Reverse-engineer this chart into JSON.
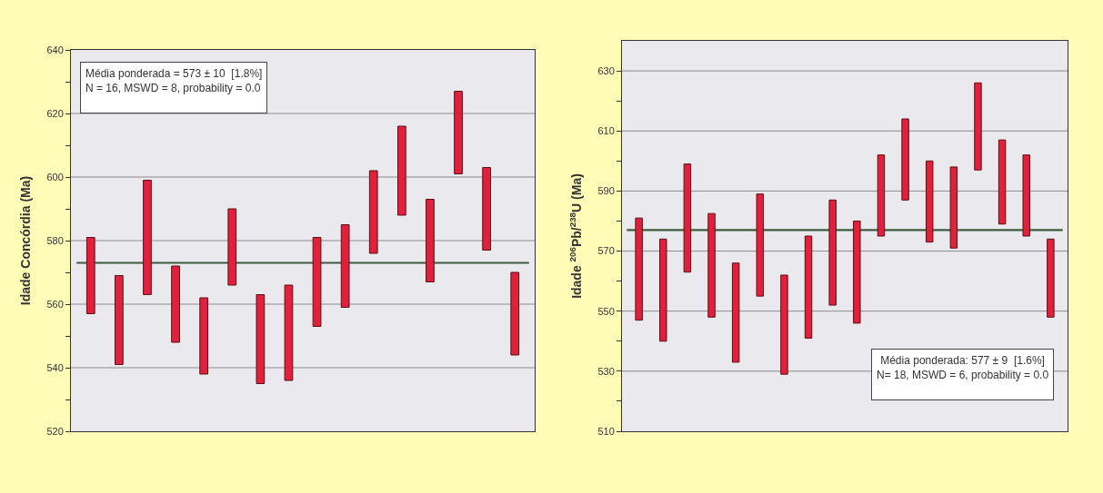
{
  "chart_data": [
    {
      "type": "bar",
      "ylabel": "Idade Concórdia (Ma)",
      "categories": [
        null,
        null,
        null,
        null,
        null,
        null,
        null,
        null,
        null,
        null,
        null,
        null,
        null,
        null,
        null,
        null
      ],
      "base": [
        557,
        541,
        563,
        548,
        538,
        566,
        535,
        536,
        553,
        559,
        576,
        588,
        567,
        601,
        577,
        544
      ],
      "values": [
        24,
        28,
        36,
        24,
        24,
        24,
        28,
        30,
        28,
        26,
        26,
        28,
        26,
        26,
        26,
        26
      ],
      "color": "#e0203c",
      "ylim": [
        520,
        640
      ],
      "yticks": [
        520,
        {
          "value": 530,
          "label": null
        },
        540,
        {
          "value": 550,
          "label": null
        },
        560,
        {
          "value": 570,
          "label": null
        },
        580,
        {
          "value": 590,
          "label": null
        },
        600,
        {
          "value": 610,
          "label": null
        },
        620,
        {
          "value": 630,
          "label": null
        },
        640
      ],
      "grid": "y",
      "ref_lines": [
        {
          "axis": "y",
          "value": 573,
          "color": "#3d5c3d"
        }
      ],
      "annotations": [
        "Média ponderada = 573 ± 10  [1.8%]",
        "N = 16, MSWD = 8, probability = 0.0"
      ]
    },
    {
      "type": "bar",
      "ylabel": "Idade $^{206}$Pb/$^{238}$U (Ma)",
      "categories": [
        null,
        null,
        null,
        null,
        null,
        null,
        null,
        null,
        null,
        null,
        null,
        null,
        null,
        null,
        null,
        null,
        null,
        null
      ],
      "base": [
        547,
        540,
        563,
        548,
        533,
        555,
        529,
        541,
        552,
        546,
        575,
        587,
        573,
        571,
        597,
        579,
        575,
        548
      ],
      "values": [
        34,
        34,
        36,
        34.5,
        33,
        34,
        33,
        34,
        35,
        34,
        27,
        27,
        27,
        27,
        29,
        28,
        27,
        26
      ],
      "color": "#e0203c",
      "ylim": [
        510,
        640
      ],
      "yticks": [
        510,
        {
          "value": 520,
          "label": null
        },
        530,
        {
          "value": 540,
          "label": null
        },
        550,
        {
          "value": 560,
          "label": null
        },
        570,
        {
          "value": 580,
          "label": null
        },
        590,
        {
          "value": 600,
          "label": null
        },
        610,
        {
          "value": 620,
          "label": null
        },
        630
      ],
      "grid": "y",
      "ref_lines": [
        {
          "axis": "y",
          "value": 577,
          "color": "#3d5c3d"
        }
      ],
      "annotations": [
        "Média ponderada: 577 ± 9  [1.6%]",
        "N= 18, MSWD = 6, probability = 0.0"
      ]
    }
  ]
}
